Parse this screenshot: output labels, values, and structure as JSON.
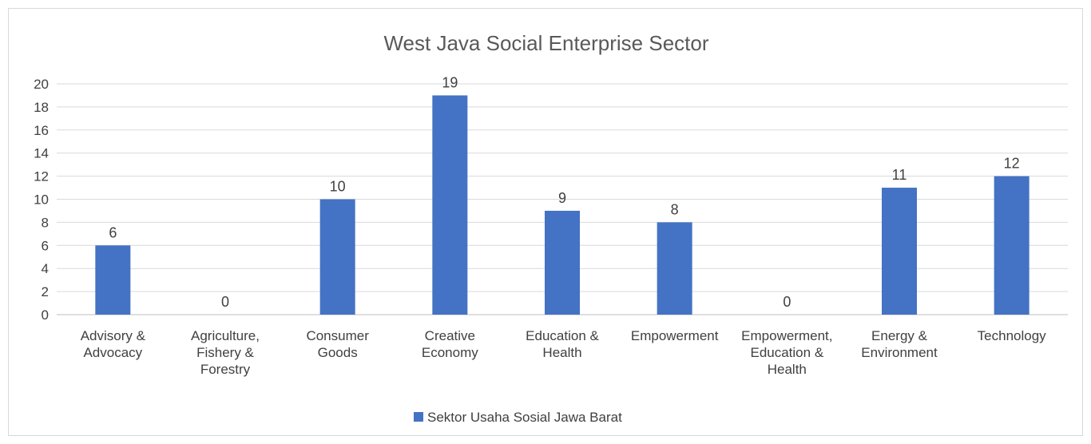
{
  "chart_data": {
    "type": "bar",
    "title": "West Java Social Enterprise Sector",
    "categories": [
      [
        "Advisory &",
        "Advocacy"
      ],
      [
        "Agriculture,",
        "Fishery &",
        "Forestry"
      ],
      [
        "Consumer",
        "Goods"
      ],
      [
        "Creative",
        "Economy"
      ],
      [
        "Education &",
        "Health"
      ],
      [
        "Empowerment"
      ],
      [
        "Empowerment,",
        "Education &",
        "Health"
      ],
      [
        "Energy &",
        "Environment"
      ],
      [
        "Technology"
      ]
    ],
    "series": [
      {
        "name": "Sektor Usaha Sosial Jawa Barat",
        "values": [
          6,
          0,
          10,
          19,
          9,
          8,
          0,
          11,
          12
        ],
        "color": "#4472c4"
      }
    ],
    "ylim": [
      0,
      20
    ],
    "yticks": [
      0,
      2,
      4,
      6,
      8,
      10,
      12,
      14,
      16,
      18,
      20
    ],
    "grid": true,
    "data_labels": true,
    "legend_position": "bottom",
    "colors": {
      "gridline": "#d9d9d9",
      "axis": "#bfbfbf",
      "text": "#404040",
      "title": "#595959"
    }
  }
}
